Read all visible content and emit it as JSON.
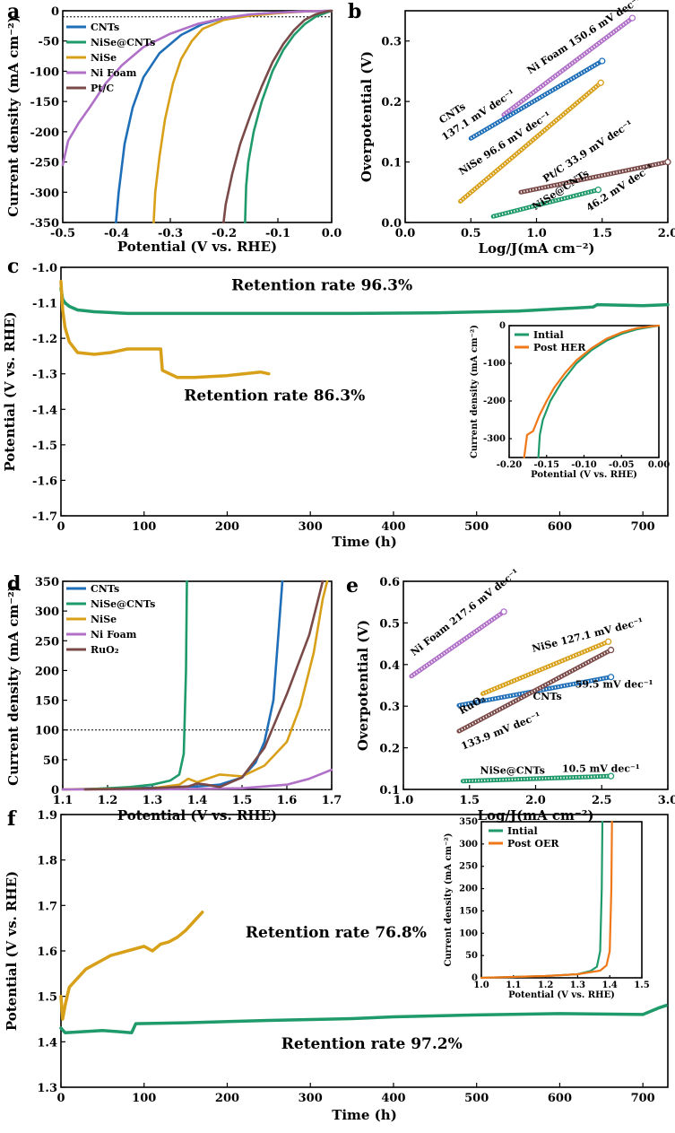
{
  "colors": {
    "CNTs": "#1f6fb8",
    "NiSe@CNTs": "#1f9a6a",
    "NiSe": "#d8a018",
    "Ni Foam": "#b070c8",
    "Pt/C": "#7a4a48",
    "RuO2": "#7a4a48",
    "Intial": "#1f9a6a",
    "Post": "#f07818",
    "retention_green": "#1f8a5a",
    "retention_brown": "#7a4a48"
  },
  "chart_data": [
    {
      "panel": "a",
      "type": "line",
      "xlabel": "Potential (V vs. RHE)",
      "ylabel": "Current density (mA cm⁻²)",
      "xlim": [
        -0.5,
        0.0
      ],
      "ylim": [
        -350,
        0
      ],
      "xticks": [
        "-0.5",
        "-0.4",
        "-0.3",
        "-0.2",
        "-0.1",
        "0.0"
      ],
      "yticks": [
        "0",
        "-50",
        "-100",
        "-150",
        "-200",
        "-250",
        "-300",
        "-350"
      ],
      "legend": [
        "CNTs",
        "NiSe@CNTs",
        "NiSe",
        "Ni Foam",
        "Pt/C"
      ],
      "reference_line_y": -10,
      "series": [
        {
          "name": "CNTs",
          "x": [
            -0.401,
            -0.396,
            -0.385,
            -0.37,
            -0.35,
            -0.32,
            -0.28,
            -0.24,
            -0.2,
            -0.15,
            -0.1,
            -0.05,
            0.0
          ],
          "y": [
            -350,
            -300,
            -220,
            -160,
            -110,
            -70,
            -40,
            -22,
            -12,
            -6,
            -3,
            -1,
            0
          ]
        },
        {
          "name": "NiSe@CNTs",
          "x": [
            -0.161,
            -0.159,
            -0.155,
            -0.145,
            -0.13,
            -0.11,
            -0.09,
            -0.07,
            -0.05,
            -0.03,
            -0.01,
            0.0
          ],
          "y": [
            -350,
            -290,
            -250,
            -200,
            -150,
            -100,
            -65,
            -40,
            -22,
            -10,
            -3,
            0
          ]
        },
        {
          "name": "NiSe",
          "x": [
            -0.331,
            -0.328,
            -0.32,
            -0.31,
            -0.295,
            -0.28,
            -0.26,
            -0.24,
            -0.2,
            -0.15,
            -0.1,
            -0.05,
            0.0
          ],
          "y": [
            -350,
            -300,
            -240,
            -180,
            -120,
            -80,
            -50,
            -30,
            -15,
            -8,
            -4,
            -1,
            0
          ]
        },
        {
          "name": "Ni Foam",
          "x": [
            -0.5,
            -0.49,
            -0.47,
            -0.45,
            -0.42,
            -0.39,
            -0.35,
            -0.3,
            -0.25,
            -0.2,
            -0.15,
            -0.1,
            -0.05,
            0.0
          ],
          "y": [
            -255,
            -215,
            -185,
            -160,
            -120,
            -90,
            -60,
            -38,
            -22,
            -12,
            -6,
            -3,
            -1,
            0
          ]
        },
        {
          "name": "Pt/C",
          "x": [
            -0.201,
            -0.197,
            -0.185,
            -0.17,
            -0.15,
            -0.13,
            -0.11,
            -0.09,
            -0.07,
            -0.05,
            -0.03,
            -0.01,
            0.0
          ],
          "y": [
            -350,
            -320,
            -270,
            -220,
            -170,
            -125,
            -85,
            -55,
            -32,
            -15,
            -6,
            -1,
            0
          ]
        }
      ]
    },
    {
      "panel": "b",
      "type": "line",
      "xlabel": "Log/J(mA cm⁻²)",
      "ylabel": "Overpotential (V)",
      "xlim": [
        0.0,
        2.0
      ],
      "ylim": [
        0.0,
        0.35
      ],
      "xticks": [
        "0.0",
        "0.5",
        "1.0",
        "1.5",
        "2.0"
      ],
      "yticks": [
        "0.0",
        "0.1",
        "0.2",
        "0.3"
      ],
      "annotations": [
        {
          "text": "Ni Foam  150.6 mV dec⁻¹",
          "color_key": "Ni Foam",
          "x": 0.95,
          "y": 0.245
        },
        {
          "text": "CNTs",
          "color_key": "CNTs",
          "x": 0.28,
          "y": 0.163
        },
        {
          "text": "137.1 mV dec⁻¹",
          "color_key": "CNTs",
          "x": 0.3,
          "y": 0.135
        },
        {
          "text": "NiSe    96.6 mV dec⁻¹",
          "color_key": "NiSe",
          "x": 0.43,
          "y": 0.078
        },
        {
          "text": "Pt/C   33.9 mV dec⁻¹",
          "color_key": "Pt/C",
          "x": 1.07,
          "y": 0.066
        },
        {
          "text": "NiSe@CNTs",
          "color_key": "NiSe@CNTs",
          "x": 0.99,
          "y": 0.02
        },
        {
          "text": "46.2 mV dec⁻¹",
          "color_key": "NiSe@CNTs",
          "x": 1.4,
          "y": 0.018
        }
      ],
      "series": [
        {
          "name": "Ni Foam",
          "x": [
            0.75,
            1.73
          ],
          "y": [
            0.178,
            0.338
          ]
        },
        {
          "name": "CNTs",
          "x": [
            0.5,
            1.5
          ],
          "y": [
            0.139,
            0.267
          ]
        },
        {
          "name": "NiSe",
          "x": [
            0.42,
            1.49
          ],
          "y": [
            0.035,
            0.231
          ]
        },
        {
          "name": "Pt/C",
          "x": [
            0.88,
            2.0
          ],
          "y": [
            0.05,
            0.1
          ]
        },
        {
          "name": "NiSe@CNTs",
          "x": [
            0.67,
            1.47
          ],
          "y": [
            0.01,
            0.054
          ]
        }
      ]
    },
    {
      "panel": "c",
      "type": "line",
      "xlabel": "Time (h)",
      "ylabel": "Potential (V vs. RHE)",
      "xlim": [
        0,
        730
      ],
      "ylim": [
        -1.7,
        -1.0
      ],
      "xticks": [
        "0",
        "100",
        "200",
        "300",
        "400",
        "500",
        "600",
        "700"
      ],
      "yticks": [
        "-1.0",
        "-1.1",
        "-1.2",
        "-1.3",
        "-1.4",
        "-1.5",
        "-1.6",
        "-1.7"
      ],
      "annotations": [
        {
          "text": "Retention rate 96.3%",
          "color_key": "retention_green",
          "x": 205,
          "y": -1.065
        },
        {
          "text": "Retention rate 86.3%",
          "color_key": "retention_brown",
          "x": 148,
          "y": -1.375
        }
      ],
      "series": [
        {
          "name": "NiSe@CNTs",
          "x": [
            0,
            2,
            5,
            10,
            20,
            40,
            80,
            150,
            250,
            350,
            450,
            550,
            640,
            645,
            700,
            730
          ],
          "y": [
            -1.06,
            -1.09,
            -1.1,
            -1.11,
            -1.12,
            -1.125,
            -1.13,
            -1.13,
            -1.13,
            -1.13,
            -1.128,
            -1.123,
            -1.112,
            -1.105,
            -1.108,
            -1.105
          ]
        },
        {
          "name": "NiSe",
          "x": [
            0,
            2,
            5,
            10,
            20,
            40,
            60,
            80,
            100,
            120,
            122,
            140,
            160,
            200,
            240,
            250
          ],
          "y": [
            -1.04,
            -1.12,
            -1.17,
            -1.21,
            -1.24,
            -1.245,
            -1.24,
            -1.23,
            -1.23,
            -1.23,
            -1.29,
            -1.31,
            -1.31,
            -1.305,
            -1.295,
            -1.3
          ]
        }
      ],
      "inset": {
        "xlabel": "Potential (V vs. RHE)",
        "ylabel": "Current density (mA cm⁻²)",
        "xlim": [
          -0.2,
          0.0
        ],
        "ylim": [
          -350,
          0
        ],
        "xticks": [
          "-0.20",
          "-0.15",
          "-0.10",
          "-0.05",
          "0.00"
        ],
        "yticks": [
          "0",
          "-100",
          "-200",
          "-300"
        ],
        "legend": [
          "Intial",
          "Post HER"
        ],
        "series": [
          {
            "name": "Intial",
            "x": [
              -0.161,
              -0.159,
              -0.155,
              -0.145,
              -0.13,
              -0.11,
              -0.09,
              -0.07,
              -0.05,
              -0.03,
              -0.01,
              0.0
            ],
            "y": [
              -350,
              -290,
              -250,
              -200,
              -150,
              -100,
              -65,
              -40,
              -22,
              -10,
              -3,
              0
            ]
          },
          {
            "name": "Post HER",
            "x": [
              -0.18,
              -0.176,
              -0.168,
              -0.16,
              -0.15,
              -0.14,
              -0.125,
              -0.11,
              -0.09,
              -0.07,
              -0.05,
              -0.03,
              -0.01,
              0.0
            ],
            "y": [
              -350,
              -290,
              -280,
              -240,
              -200,
              -165,
              -125,
              -92,
              -60,
              -35,
              -18,
              -7,
              -2,
              0
            ]
          }
        ]
      }
    },
    {
      "panel": "d",
      "type": "line",
      "xlabel": "Potential (V vs. RHE)",
      "ylabel": "Current density (mA cm⁻²)",
      "xlim": [
        1.1,
        1.7
      ],
      "ylim": [
        0,
        350
      ],
      "xticks": [
        "1.1",
        "1.2",
        "1.3",
        "1.4",
        "1.5",
        "1.6",
        "1.7"
      ],
      "yticks": [
        "0",
        "50",
        "100",
        "150",
        "200",
        "250",
        "300",
        "350"
      ],
      "legend": [
        "CNTs",
        "NiSe@CNTs",
        "NiSe",
        "Ni Foam",
        "RuO₂"
      ],
      "reference_line_y": 100,
      "series": [
        {
          "name": "CNTs",
          "x": [
            1.1,
            1.3,
            1.4,
            1.45,
            1.5,
            1.53,
            1.55,
            1.57,
            1.58,
            1.59
          ],
          "y": [
            0,
            3,
            5,
            8,
            20,
            45,
            80,
            150,
            250,
            350
          ]
        },
        {
          "name": "NiSe@CNTs",
          "x": [
            1.15,
            1.2,
            1.25,
            1.3,
            1.34,
            1.36,
            1.37,
            1.375,
            1.377
          ],
          "y": [
            0,
            2,
            4,
            8,
            15,
            25,
            60,
            200,
            350
          ]
        },
        {
          "name": "NiSe",
          "x": [
            1.1,
            1.3,
            1.36,
            1.38,
            1.4,
            1.45,
            1.5,
            1.55,
            1.6,
            1.63,
            1.66,
            1.68,
            1.69
          ],
          "y": [
            0,
            2,
            8,
            18,
            12,
            25,
            22,
            40,
            80,
            140,
            230,
            320,
            350
          ]
        },
        {
          "name": "Ni Foam",
          "x": [
            1.1,
            1.3,
            1.5,
            1.6,
            1.65,
            1.7
          ],
          "y": [
            0,
            0,
            2,
            8,
            18,
            33
          ]
        },
        {
          "name": "RuO₂",
          "x": [
            1.15,
            1.3,
            1.38,
            1.4,
            1.42,
            1.45,
            1.5,
            1.55,
            1.6,
            1.65,
            1.68
          ],
          "y": [
            0,
            2,
            5,
            10,
            8,
            4,
            20,
            70,
            160,
            260,
            350
          ]
        }
      ]
    },
    {
      "panel": "e",
      "type": "line",
      "xlabel": "Log/J(mA cm⁻²)",
      "ylabel": "Overpotential (V)",
      "xlim": [
        1.0,
        3.0
      ],
      "ylim": [
        0.1,
        0.6
      ],
      "xticks": [
        "1.0",
        "1.5",
        "2.0",
        "2.5",
        "3.0"
      ],
      "yticks": [
        "0.1",
        "0.2",
        "0.3",
        "0.4",
        "0.5",
        "0.6"
      ],
      "annotations": [
        {
          "text": "Ni Foam  217.6 mV dec⁻¹",
          "color_key": "Ni Foam",
          "x": 1.08,
          "y": 0.42
        },
        {
          "text": "NiSe 127.1 mV dec⁻¹",
          "color_key": "NiSe",
          "x": 1.98,
          "y": 0.43
        },
        {
          "text": "RuO₂",
          "color_key": "Pt/C",
          "x": 1.44,
          "y": 0.28
        },
        {
          "text": "CNTs",
          "color_key": "CNTs",
          "x": 1.98,
          "y": 0.315
        },
        {
          "text": "59.5 mV dec⁻¹",
          "color_key": "CNTs",
          "x": 2.3,
          "y": 0.345
        },
        {
          "text": "133.9 mV dec⁻¹",
          "color_key": "Pt/C",
          "x": 1.45,
          "y": 0.195
        },
        {
          "text": "NiSe@CNTs",
          "color_key": "NiSe@CNTs",
          "x": 1.58,
          "y": 0.138
        },
        {
          "text": "10.5 mV dec⁻¹",
          "color_key": "NiSe@CNTs",
          "x": 2.2,
          "y": 0.142
        }
      ],
      "series": [
        {
          "name": "Ni Foam",
          "x": [
            1.06,
            1.76
          ],
          "y": [
            0.372,
            0.527
          ]
        },
        {
          "name": "NiSe",
          "x": [
            1.6,
            2.55
          ],
          "y": [
            0.33,
            0.455
          ]
        },
        {
          "name": "CNTs",
          "x": [
            1.42,
            2.57
          ],
          "y": [
            0.302,
            0.37
          ]
        },
        {
          "name": "RuO₂",
          "x": [
            1.42,
            2.57
          ],
          "y": [
            0.24,
            0.435
          ]
        },
        {
          "name": "NiSe@CNTs",
          "x": [
            1.45,
            2.57
          ],
          "y": [
            0.12,
            0.132
          ]
        }
      ]
    },
    {
      "panel": "f",
      "type": "line",
      "xlabel": "Time (h)",
      "ylabel": "Potential (V vs. RHE)",
      "xlim": [
        0,
        730
      ],
      "ylim": [
        1.3,
        1.9
      ],
      "xticks": [
        "0",
        "100",
        "200",
        "300",
        "400",
        "500",
        "600",
        "700"
      ],
      "yticks": [
        "1.3",
        "1.4",
        "1.5",
        "1.6",
        "1.7",
        "1.8",
        "1.9"
      ],
      "annotations": [
        {
          "text": "Retention rate 76.8%",
          "color_key": "retention_brown",
          "x": 222,
          "y": 1.63
        },
        {
          "text": "Retention rate 97.2%",
          "color_key": "retention_green",
          "x": 265,
          "y": 1.385
        }
      ],
      "series": [
        {
          "name": "NiSe@CNTs",
          "x": [
            0,
            5,
            50,
            85,
            90,
            150,
            250,
            350,
            400,
            500,
            600,
            700,
            720,
            728
          ],
          "y": [
            1.43,
            1.42,
            1.425,
            1.42,
            1.44,
            1.442,
            1.447,
            1.451,
            1.455,
            1.459,
            1.462,
            1.46,
            1.475,
            1.48
          ]
        },
        {
          "name": "NiSe",
          "x": [
            0,
            2,
            5,
            10,
            20,
            30,
            40,
            50,
            60,
            80,
            100,
            110,
            120,
            130,
            140,
            150,
            160,
            170
          ],
          "y": [
            1.5,
            1.45,
            1.48,
            1.52,
            1.54,
            1.56,
            1.57,
            1.58,
            1.59,
            1.6,
            1.61,
            1.6,
            1.615,
            1.62,
            1.63,
            1.645,
            1.665,
            1.685
          ]
        }
      ],
      "inset": {
        "xlabel": "Potential (V vs. RHE)",
        "ylabel": "Current density (mA cm⁻²)",
        "xlim": [
          1.0,
          1.5
        ],
        "ylim": [
          0,
          350
        ],
        "xticks": [
          "1.0",
          "1.1",
          "1.2",
          "1.3",
          "1.4",
          "1.5"
        ],
        "yticks": [
          "0",
          "50",
          "100",
          "150",
          "200",
          "250",
          "300",
          "350"
        ],
        "legend": [
          "Intial",
          "Post OER"
        ],
        "series": [
          {
            "name": "Intial",
            "x": [
              1.0,
              1.1,
              1.2,
              1.3,
              1.34,
              1.36,
              1.37,
              1.375,
              1.377
            ],
            "y": [
              0,
              2,
              4,
              8,
              15,
              25,
              60,
              200,
              350
            ]
          },
          {
            "name": "Post OER",
            "x": [
              1.0,
              1.1,
              1.2,
              1.3,
              1.37,
              1.39,
              1.4,
              1.405,
              1.407
            ],
            "y": [
              0,
              2,
              4,
              8,
              16,
              28,
              60,
              200,
              350
            ]
          }
        ]
      }
    }
  ]
}
